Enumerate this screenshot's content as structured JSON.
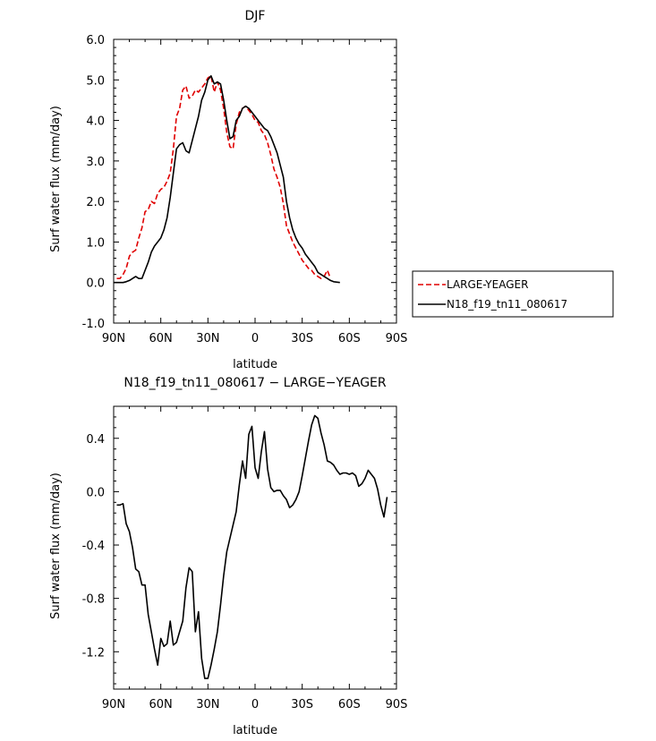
{
  "chart_data": [
    {
      "type": "line",
      "title": "DJF",
      "xlabel": "latitude",
      "ylabel": "Surf water flux (mm/day)",
      "xlim": [
        90,
        -90
      ],
      "ylim": [
        -1.0,
        6.0
      ],
      "x_ticks": [
        90,
        60,
        30,
        0,
        -30,
        -60,
        -90
      ],
      "x_tick_labels": [
        "90N",
        "60N",
        "30N",
        "0",
        "30S",
        "60S",
        "90S"
      ],
      "y_ticks": [
        -1.0,
        0.0,
        1.0,
        2.0,
        3.0,
        4.0,
        5.0,
        6.0
      ],
      "y_tick_labels": [
        "-1.0",
        "0.0",
        "1.0",
        "2.0",
        "3.0",
        "4.0",
        "5.0",
        "6.0"
      ],
      "legend_position": "right",
      "series": [
        {
          "name": "LARGE-YEAGER",
          "color": "#e00000",
          "dash": "dashed",
          "points": [
            [
              88,
              0.1
            ],
            [
              86,
              0.1
            ],
            [
              84,
              0.2
            ],
            [
              82,
              0.35
            ],
            [
              80,
              0.65
            ],
            [
              78,
              0.75
            ],
            [
              76,
              0.8
            ],
            [
              74,
              1.1
            ],
            [
              72,
              1.35
            ],
            [
              70,
              1.75
            ],
            [
              68,
              1.8
            ],
            [
              66,
              2.0
            ],
            [
              64,
              1.95
            ],
            [
              62,
              2.2
            ],
            [
              60,
              2.3
            ],
            [
              58,
              2.35
            ],
            [
              56,
              2.5
            ],
            [
              54,
              2.7
            ],
            [
              52,
              3.3
            ],
            [
              50,
              4.1
            ],
            [
              48,
              4.3
            ],
            [
              46,
              4.75
            ],
            [
              44,
              4.85
            ],
            [
              42,
              4.55
            ],
            [
              40,
              4.6
            ],
            [
              38,
              4.75
            ],
            [
              36,
              4.7
            ],
            [
              34,
              4.8
            ],
            [
              32,
              4.9
            ],
            [
              30,
              5.05
            ],
            [
              28,
              5.1
            ],
            [
              26,
              4.7
            ],
            [
              24,
              4.95
            ],
            [
              22,
              4.75
            ],
            [
              20,
              4.3
            ],
            [
              18,
              3.7
            ],
            [
              16,
              3.35
            ],
            [
              14,
              3.3
            ],
            [
              12,
              3.9
            ],
            [
              10,
              4.2
            ],
            [
              8,
              4.3
            ],
            [
              6,
              4.35
            ],
            [
              4,
              4.25
            ],
            [
              2,
              4.15
            ],
            [
              0,
              4.0
            ],
            [
              -2,
              3.95
            ],
            [
              -4,
              3.75
            ],
            [
              -6,
              3.65
            ],
            [
              -8,
              3.45
            ],
            [
              -10,
              3.15
            ],
            [
              -12,
              2.8
            ],
            [
              -14,
              2.6
            ],
            [
              -16,
              2.35
            ],
            [
              -18,
              1.95
            ],
            [
              -20,
              1.4
            ],
            [
              -22,
              1.2
            ],
            [
              -24,
              1.0
            ],
            [
              -26,
              0.85
            ],
            [
              -28,
              0.7
            ],
            [
              -30,
              0.55
            ],
            [
              -32,
              0.45
            ],
            [
              -34,
              0.35
            ],
            [
              -36,
              0.3
            ],
            [
              -38,
              0.2
            ],
            [
              -40,
              0.15
            ],
            [
              -42,
              0.1
            ],
            [
              -44,
              0.15
            ],
            [
              -46,
              0.3
            ],
            [
              -48,
              0.1
            ]
          ]
        },
        {
          "name": "N18_f19_tn11_080617",
          "color": "#000000",
          "dash": "solid",
          "points": [
            [
              90,
              0.0
            ],
            [
              86,
              0.0
            ],
            [
              84,
              0.0
            ],
            [
              82,
              0.02
            ],
            [
              80,
              0.05
            ],
            [
              78,
              0.1
            ],
            [
              76,
              0.15
            ],
            [
              74,
              0.1
            ],
            [
              72,
              0.1
            ],
            [
              70,
              0.3
            ],
            [
              68,
              0.5
            ],
            [
              66,
              0.75
            ],
            [
              64,
              0.9
            ],
            [
              62,
              1.0
            ],
            [
              60,
              1.1
            ],
            [
              58,
              1.3
            ],
            [
              56,
              1.6
            ],
            [
              54,
              2.1
            ],
            [
              52,
              2.7
            ],
            [
              50,
              3.3
            ],
            [
              48,
              3.4
            ],
            [
              46,
              3.45
            ],
            [
              44,
              3.25
            ],
            [
              42,
              3.2
            ],
            [
              40,
              3.5
            ],
            [
              38,
              3.8
            ],
            [
              36,
              4.1
            ],
            [
              34,
              4.5
            ],
            [
              32,
              4.7
            ],
            [
              30,
              5.0
            ],
            [
              28,
              5.1
            ],
            [
              26,
              4.9
            ],
            [
              24,
              4.95
            ],
            [
              22,
              4.9
            ],
            [
              20,
              4.5
            ],
            [
              18,
              4.0
            ],
            [
              16,
              3.55
            ],
            [
              14,
              3.6
            ],
            [
              12,
              4.0
            ],
            [
              10,
              4.1
            ],
            [
              8,
              4.3
            ],
            [
              6,
              4.35
            ],
            [
              4,
              4.3
            ],
            [
              2,
              4.2
            ],
            [
              0,
              4.1
            ],
            [
              -2,
              4.0
            ],
            [
              -4,
              3.9
            ],
            [
              -6,
              3.8
            ],
            [
              -8,
              3.75
            ],
            [
              -10,
              3.6
            ],
            [
              -12,
              3.4
            ],
            [
              -14,
              3.2
            ],
            [
              -16,
              2.9
            ],
            [
              -18,
              2.6
            ],
            [
              -20,
              2.0
            ],
            [
              -22,
              1.6
            ],
            [
              -24,
              1.3
            ],
            [
              -26,
              1.1
            ],
            [
              -28,
              0.95
            ],
            [
              -30,
              0.85
            ],
            [
              -32,
              0.7
            ],
            [
              -34,
              0.6
            ],
            [
              -36,
              0.5
            ],
            [
              -38,
              0.4
            ],
            [
              -40,
              0.25
            ],
            [
              -42,
              0.2
            ],
            [
              -44,
              0.15
            ],
            [
              -46,
              0.1
            ],
            [
              -48,
              0.05
            ],
            [
              -50,
              0.02
            ],
            [
              -54,
              0.0
            ]
          ]
        }
      ]
    },
    {
      "type": "line",
      "title": "N18_f19_tn11_080617 − LARGE−YEAGER",
      "xlabel": "latitude",
      "ylabel": "Surf water flux (mm/day)",
      "xlim": [
        90,
        -90
      ],
      "ylim": [
        -1.48,
        0.64
      ],
      "x_ticks": [
        90,
        60,
        30,
        0,
        -30,
        -60,
        -90
      ],
      "x_tick_labels": [
        "90N",
        "60N",
        "30N",
        "0",
        "30S",
        "60S",
        "90S"
      ],
      "y_ticks": [
        -1.2,
        -0.8,
        -0.4,
        0.0,
        0.4
      ],
      "y_tick_labels": [
        "-1.2",
        "-0.8",
        "-0.4",
        "0.0",
        "0.4"
      ],
      "series": [
        {
          "color": "#000000",
          "dash": "solid",
          "points": [
            [
              88,
              -0.1
            ],
            [
              86,
              -0.1
            ],
            [
              84,
              -0.09
            ],
            [
              82,
              -0.24
            ],
            [
              80,
              -0.3
            ],
            [
              78,
              -0.42
            ],
            [
              76,
              -0.58
            ],
            [
              74,
              -0.6
            ],
            [
              72,
              -0.7
            ],
            [
              70,
              -0.7
            ],
            [
              68,
              -0.92
            ],
            [
              66,
              -1.05
            ],
            [
              64,
              -1.18
            ],
            [
              62,
              -1.3
            ],
            [
              60,
              -1.1
            ],
            [
              58,
              -1.16
            ],
            [
              56,
              -1.14
            ],
            [
              54,
              -0.97
            ],
            [
              52,
              -1.15
            ],
            [
              50,
              -1.13
            ],
            [
              48,
              -1.05
            ],
            [
              46,
              -0.97
            ],
            [
              44,
              -0.72
            ],
            [
              42,
              -0.57
            ],
            [
              40,
              -0.6
            ],
            [
              38,
              -1.05
            ],
            [
              36,
              -0.9
            ],
            [
              34,
              -1.25
            ],
            [
              32,
              -1.4
            ],
            [
              30,
              -1.4
            ],
            [
              28,
              -1.3
            ],
            [
              26,
              -1.18
            ],
            [
              24,
              -1.05
            ],
            [
              22,
              -0.85
            ],
            [
              20,
              -0.63
            ],
            [
              18,
              -0.45
            ],
            [
              16,
              -0.35
            ],
            [
              14,
              -0.25
            ],
            [
              12,
              -0.15
            ],
            [
              10,
              0.05
            ],
            [
              8,
              0.23
            ],
            [
              6,
              0.1
            ],
            [
              4,
              0.43
            ],
            [
              2,
              0.49
            ],
            [
              0,
              0.18
            ],
            [
              -2,
              0.1
            ],
            [
              -4,
              0.3
            ],
            [
              -6,
              0.45
            ],
            [
              -8,
              0.17
            ],
            [
              -10,
              0.03
            ],
            [
              -12,
              0.0
            ],
            [
              -14,
              0.01
            ],
            [
              -16,
              0.01
            ],
            [
              -18,
              -0.03
            ],
            [
              -20,
              -0.06
            ],
            [
              -22,
              -0.12
            ],
            [
              -24,
              -0.1
            ],
            [
              -26,
              -0.06
            ],
            [
              -28,
              0.0
            ],
            [
              -30,
              0.12
            ],
            [
              -32,
              0.25
            ],
            [
              -34,
              0.38
            ],
            [
              -36,
              0.5
            ],
            [
              -38,
              0.57
            ],
            [
              -40,
              0.55
            ],
            [
              -42,
              0.44
            ],
            [
              -44,
              0.35
            ],
            [
              -46,
              0.23
            ],
            [
              -48,
              0.22
            ],
            [
              -50,
              0.2
            ],
            [
              -52,
              0.16
            ],
            [
              -54,
              0.13
            ],
            [
              -56,
              0.14
            ],
            [
              -58,
              0.14
            ],
            [
              -60,
              0.13
            ],
            [
              -62,
              0.14
            ],
            [
              -64,
              0.12
            ],
            [
              -66,
              0.04
            ],
            [
              -68,
              0.06
            ],
            [
              -70,
              0.1
            ],
            [
              -72,
              0.16
            ],
            [
              -74,
              0.13
            ],
            [
              -76,
              0.1
            ],
            [
              -78,
              0.02
            ],
            [
              -80,
              -0.1
            ],
            [
              -82,
              -0.19
            ],
            [
              -84,
              -0.04
            ]
          ]
        }
      ]
    }
  ]
}
